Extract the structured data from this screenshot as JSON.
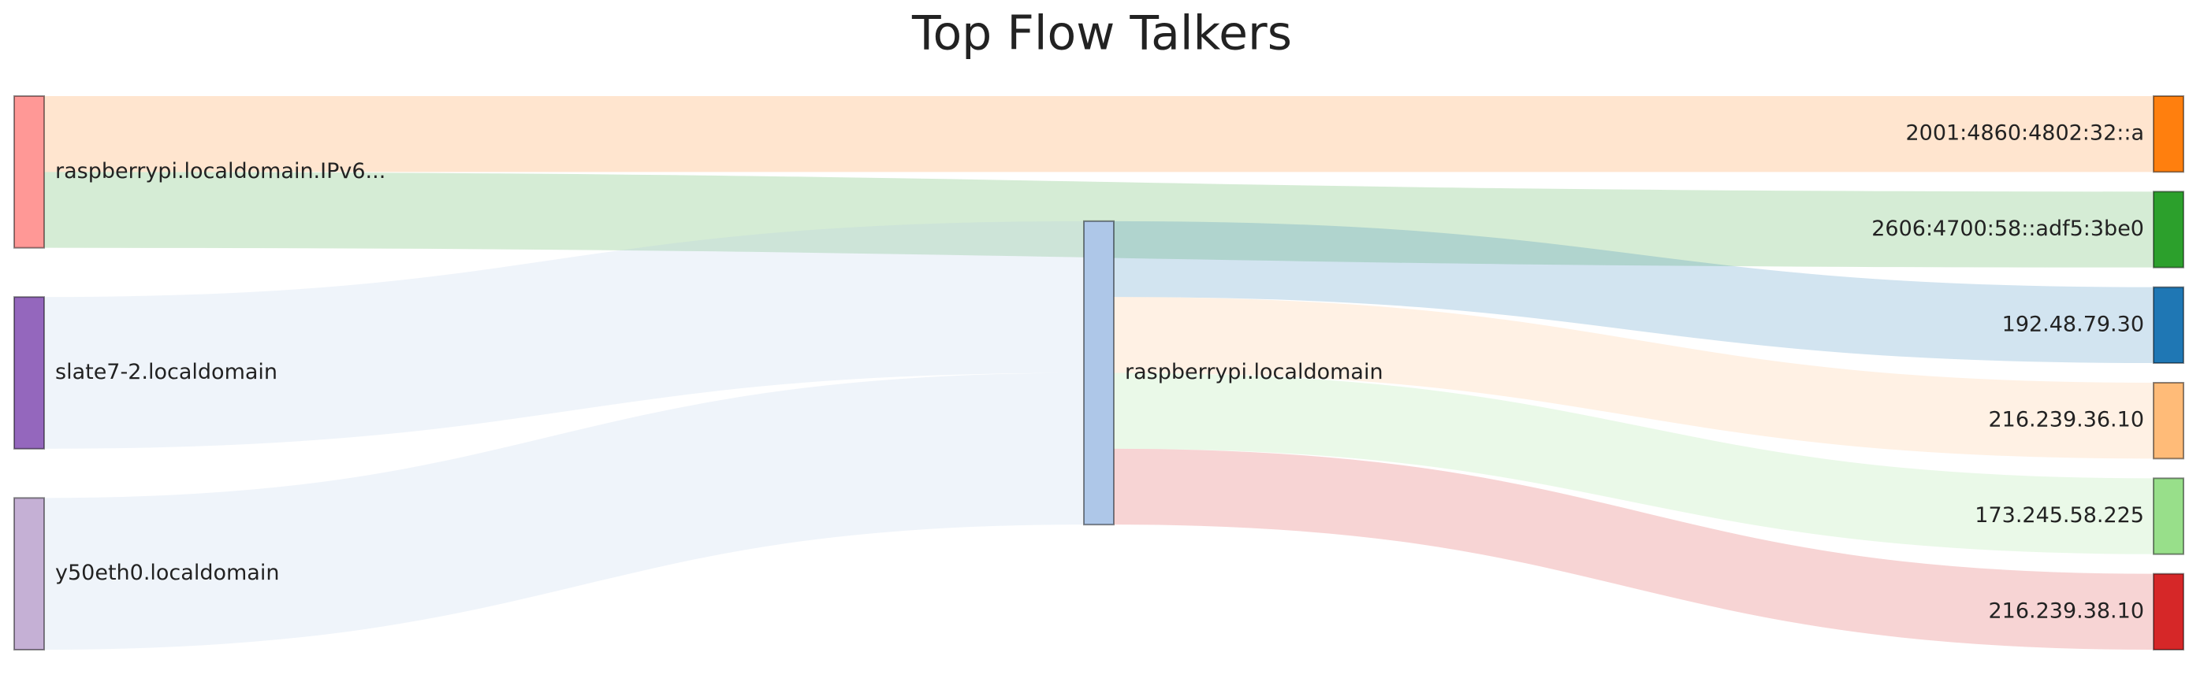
{
  "chart_data": {
    "type": "sankey",
    "title": "Top Flow Talkers",
    "nodes": [
      {
        "name": "raspberrypi.localdomain.IPv6...",
        "color": "#ff9896"
      },
      {
        "name": "slate7-2.localdomain",
        "color": "#9467bd"
      },
      {
        "name": "y50eth0.localdomain",
        "color": "#c5b0d5"
      },
      {
        "name": "raspberrypi.localdomain",
        "color": "#aec7e8"
      },
      {
        "name": "2001:4860:4802:32::a",
        "color": "#ff7f0e"
      },
      {
        "name": "2606:4700:58::adf5:3be0",
        "color": "#2ca02c"
      },
      {
        "name": "192.48.79.30",
        "color": "#1f77b4"
      },
      {
        "name": "216.239.36.10",
        "color": "#ffbb78"
      },
      {
        "name": "173.245.58.225",
        "color": "#98df8a"
      },
      {
        "name": "216.239.38.10",
        "color": "#d62728"
      }
    ],
    "links": [
      {
        "source": 0,
        "target": 4,
        "value": 1
      },
      {
        "source": 0,
        "target": 5,
        "value": 1
      },
      {
        "source": 1,
        "target": 3,
        "value": 2
      },
      {
        "source": 2,
        "target": 3,
        "value": 2
      },
      {
        "source": 3,
        "target": 6,
        "value": 1
      },
      {
        "source": 3,
        "target": 7,
        "value": 1
      },
      {
        "source": 3,
        "target": 8,
        "value": 1
      },
      {
        "source": 3,
        "target": 9,
        "value": 1
      }
    ]
  }
}
